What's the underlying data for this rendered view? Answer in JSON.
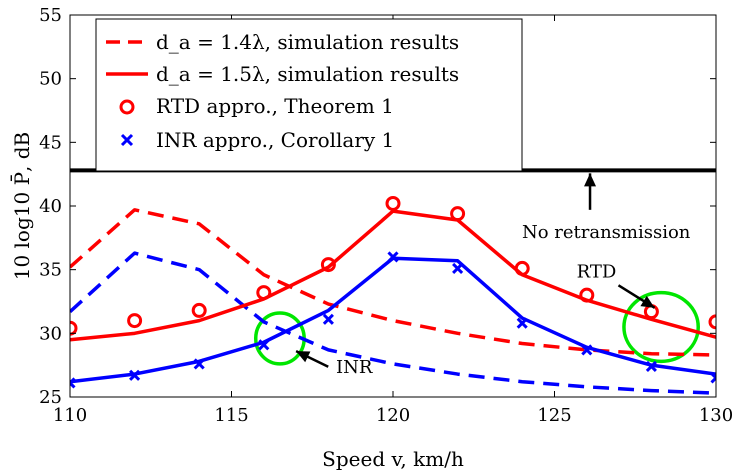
{
  "chart_data": {
    "type": "line",
    "xlabel": "Speed v, km/h",
    "ylabel": "10 log10 P̄, dB",
    "xlim": [
      110,
      130
    ],
    "ylim": [
      25,
      55
    ],
    "xticks": [
      110,
      115,
      120,
      125,
      130
    ],
    "yticks": [
      25,
      30,
      35,
      40,
      45,
      50,
      55
    ],
    "legend_position": "top-left",
    "colors": {
      "red": "#ff0000",
      "blue": "#0000ff",
      "black": "#000000",
      "green": "#00e600"
    },
    "series": [
      {
        "name": "d_a = 1.4λ, simulation results",
        "style": "dashed",
        "color": "#ff0000",
        "groups": [
          {
            "x": [
              110,
              112,
              114,
              116,
              118,
              120,
              122,
              124,
              126,
              128,
              130
            ],
            "y": [
              35.2,
              39.7,
              38.6,
              34.6,
              32.3,
              31.0,
              30.0,
              29.2,
              28.7,
              28.4,
              28.3
            ]
          },
          {
            "x": [
              110,
              112,
              114,
              116,
              118,
              120,
              122,
              124,
              126,
              128,
              130
            ],
            "y": [
              31.7,
              36.3,
              35.0,
              30.9,
              28.7,
              27.6,
              26.8,
              26.2,
              25.8,
              25.5,
              25.3
            ]
          }
        ]
      },
      {
        "name": "d_a = 1.5λ, simulation results",
        "style": "solid",
        "color": "#ff0000",
        "groups": [
          {
            "x": [
              110,
              112,
              114,
              116,
              118,
              120,
              122,
              124,
              126,
              128,
              130
            ],
            "y": [
              29.5,
              30.0,
              31.0,
              32.7,
              35.2,
              39.6,
              38.9,
              34.6,
              32.6,
              31.1,
              29.7
            ]
          },
          {
            "x": [
              110,
              112,
              114,
              116,
              118,
              120,
              122,
              124,
              126,
              128,
              130
            ],
            "y": [
              26.2,
              26.8,
              27.8,
              29.3,
              31.8,
              35.9,
              35.7,
              31.2,
              28.9,
              27.5,
              26.8
            ]
          }
        ]
      },
      {
        "name": "RTD appro., Theorem 1",
        "style": "circle-markers",
        "color": "#ff0000",
        "x": [
          110,
          112,
          114,
          116,
          118,
          120,
          122,
          124,
          126,
          128,
          130
        ],
        "y": [
          30.4,
          31.0,
          31.8,
          33.2,
          35.4,
          40.2,
          39.4,
          35.1,
          33.0,
          31.7,
          30.9
        ]
      },
      {
        "name": "INR appro., Corollary 1",
        "style": "x-markers",
        "color": "#0000ff",
        "x": [
          110,
          112,
          114,
          116,
          118,
          120,
          122,
          124,
          126,
          128,
          130
        ],
        "y": [
          26.1,
          26.7,
          27.6,
          29.1,
          31.1,
          36.0,
          35.1,
          30.8,
          28.7,
          27.4,
          26.5
        ]
      },
      {
        "name": "No retransmission",
        "style": "solid",
        "color": "#000000",
        "x": [
          110,
          130
        ],
        "y": [
          42.8,
          42.8
        ]
      }
    ],
    "annotations": [
      {
        "text": "No retransmission",
        "x": 126.6,
        "y": 37.5,
        "points_to": [
          126.1,
          42.8
        ]
      },
      {
        "text": "RTD",
        "x": 126.3,
        "y": 34.4,
        "points_to": [
          128.1,
          32.0
        ]
      },
      {
        "text": "INR",
        "x": 118.8,
        "y": 26.9,
        "points_to": [
          117.0,
          28.6
        ]
      }
    ],
    "highlights": [
      {
        "center": [
          116.5,
          29.6
        ],
        "radius_x": 0.75,
        "radius_y": 2.0
      },
      {
        "center": [
          128.3,
          30.5
        ],
        "radius_x": 1.15,
        "radius_y": 2.7
      }
    ]
  }
}
